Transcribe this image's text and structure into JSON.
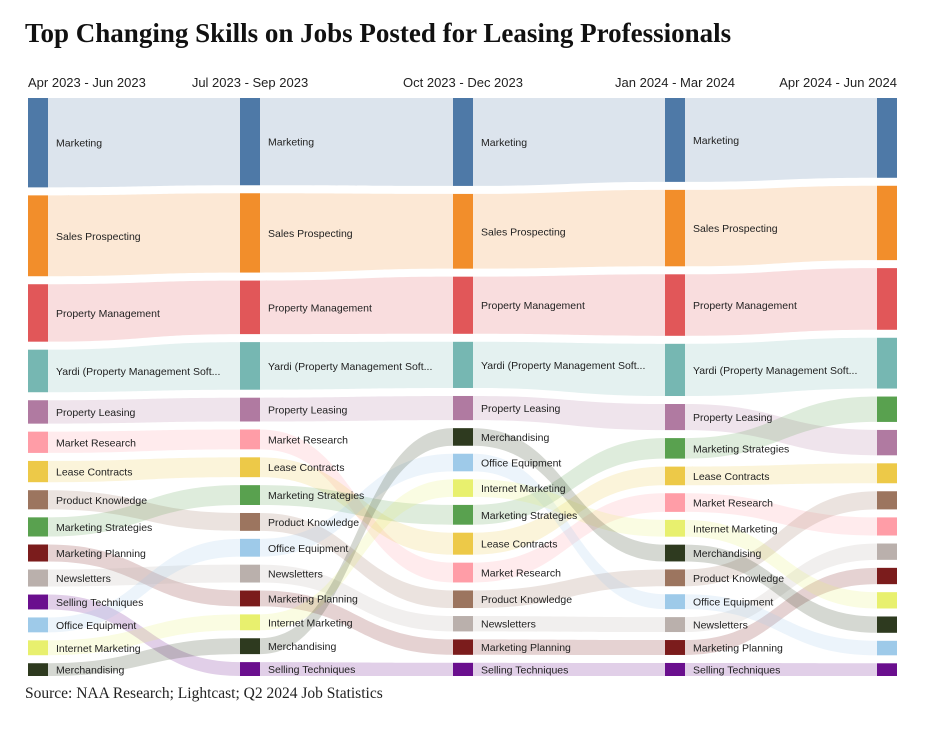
{
  "chart_data": {
    "type": "sankey",
    "title": "Top Changing Skills on Jobs Posted for Leasing Professionals",
    "source": "Source: NAA Research; Lightcast; Q2 2024 Job Statistics",
    "periods": [
      "Apr 2023 - Jun 2023",
      "Jul 2023 - Sep 2023",
      "Oct 2023 - Dec 2023",
      "Jan 2024 - Mar 2024",
      "Apr 2024 - Jun 2024"
    ],
    "skills": [
      {
        "name": "Marketing",
        "label": "Marketing",
        "color": "#4e79a7",
        "ranks": [
          1,
          1,
          1,
          1,
          1
        ],
        "values": [
          42,
          44,
          40,
          45,
          44
        ]
      },
      {
        "name": "Sales Prospecting",
        "label": "Sales Prospecting",
        "color": "#f28e2b",
        "ranks": [
          2,
          2,
          2,
          2,
          2
        ],
        "values": [
          38,
          40,
          34,
          41,
          41
        ]
      },
      {
        "name": "Property Management",
        "label": "Property Management",
        "color": "#e15759",
        "ranks": [
          3,
          3,
          3,
          3,
          3
        ],
        "values": [
          27,
          27,
          26,
          33,
          34
        ]
      },
      {
        "name": "Yardi (Property Management Software)",
        "label": "Yardi (Property Management Soft...",
        "color": "#76b7b2",
        "ranks": [
          4,
          4,
          4,
          4,
          4
        ],
        "values": [
          20,
          24,
          21,
          28,
          28
        ]
      },
      {
        "name": "Property Leasing",
        "label": "Property Leasing",
        "color": "#b07aa1",
        "ranks": [
          5,
          5,
          5,
          5,
          6
        ],
        "values": [
          11,
          12,
          11,
          14,
          14
        ]
      },
      {
        "name": "Market Research",
        "label": "Market Research",
        "color": "#ff9da7",
        "ranks": [
          6,
          6,
          13,
          9,
          9
        ],
        "values": [
          10,
          10,
          9,
          10,
          10
        ]
      },
      {
        "name": "Lease Contracts",
        "label": "Lease Contracts",
        "color": "#edc948",
        "ranks": [
          7,
          7,
          12,
          7,
          7
        ],
        "values": [
          10,
          10,
          10,
          10,
          11
        ]
      },
      {
        "name": "Product Knowledge",
        "label": "Product Knowledge",
        "color": "#9c755f",
        "ranks": [
          8,
          9,
          14,
          12,
          8
        ],
        "values": [
          9,
          9,
          8,
          9,
          10
        ]
      },
      {
        "name": "Marketing Strategies",
        "label": "Marketing Strategies",
        "color": "#59a14f",
        "ranks": [
          9,
          8,
          11,
          6,
          5
        ],
        "values": [
          9,
          10,
          9,
          11,
          14
        ]
      },
      {
        "name": "Marketing Planning",
        "label": "Marketing Planning",
        "color": "#7b1c1c",
        "ranks": [
          10,
          12,
          16,
          16,
          11
        ],
        "values": [
          8,
          8,
          7,
          8,
          9
        ]
      },
      {
        "name": "Newsletters",
        "label": "Newsletters",
        "color": "#bab0ac",
        "ranks": [
          11,
          11,
          15,
          15,
          10
        ],
        "values": [
          8,
          9,
          7,
          8,
          9
        ]
      },
      {
        "name": "Selling Techniques",
        "label": "Selling Techniques",
        "color": "#6a0f8e",
        "ranks": [
          12,
          15,
          17,
          17,
          15
        ],
        "values": [
          7,
          7,
          6,
          7,
          7
        ]
      },
      {
        "name": "Office Equipment",
        "label": "Office Equipment",
        "color": "#9ecae9",
        "ranks": [
          13,
          10,
          9,
          14,
          14
        ],
        "values": [
          7,
          9,
          8,
          8,
          8
        ]
      },
      {
        "name": "Internet Marketing",
        "label": "Internet Marketing",
        "color": "#e8f06e",
        "ranks": [
          14,
          13,
          10,
          10,
          12
        ],
        "values": [
          7,
          8,
          8,
          9,
          9
        ]
      },
      {
        "name": "Merchandising",
        "label": "Merchandising",
        "color": "#2e3a1f",
        "ranks": [
          15,
          14,
          8,
          11,
          13
        ],
        "values": [
          6,
          8,
          8,
          9,
          9
        ]
      }
    ]
  }
}
